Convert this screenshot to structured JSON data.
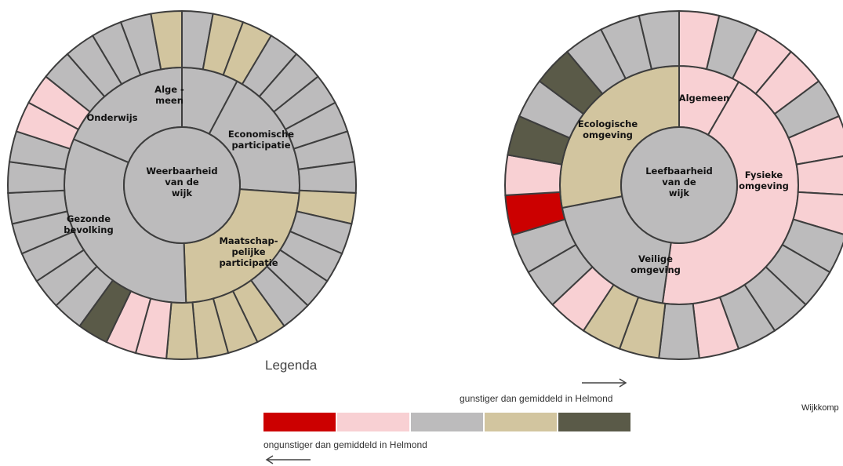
{
  "legend": {
    "title": "Legenda",
    "favorable_text": "gunstiger dan gemiddeld in Helmond",
    "unfavorable_text": "ongunstiger dan gemiddeld in Helmond",
    "colors": [
      "#cc0000",
      "#f8d0d3",
      "#bcbbbc",
      "#d2c59f",
      "#5a5a48"
    ]
  },
  "footer": {
    "text": "Wijkkomp"
  },
  "color_scale": {
    "R": "#cc0000",
    "P": "#f8d0d3",
    "G": "#bcbbbc",
    "T": "#d2c59f",
    "D": "#5a5a48"
  },
  "chart_data": [
    {
      "type": "sunburst",
      "center_label": [
        "Weerbaarheid",
        "van de",
        "wijk"
      ],
      "categories": [
        {
          "label": [
            "Alge -",
            "meen"
          ],
          "color": "G",
          "indicators": [
            "G",
            "T",
            "T",
            "G",
            "G",
            "G",
            "G",
            "G",
            "G",
            "T",
            "G",
            "G",
            "G",
            "G",
            "T",
            "T"
          ]
        },
        {
          "label": [
            "Economische",
            "participatie"
          ],
          "color": "G",
          "indicators": []
        },
        {
          "label": [
            "Maatschap-",
            "pelijke",
            "participatie"
          ],
          "color": "T",
          "indicators": [
            "T",
            "T",
            "P",
            "P",
            "D"
          ]
        },
        {
          "label": [
            "Gezonde",
            "bevolking"
          ],
          "color": "G",
          "indicators": [
            "G",
            "G",
            "G",
            "G",
            "G",
            "G",
            "G",
            "P",
            "P",
            "G",
            "G"
          ]
        },
        {
          "label": [
            "Onderwijs"
          ],
          "color": "G",
          "indicators": [
            "G",
            "G",
            "T"
          ]
        }
      ]
    },
    {
      "type": "sunburst",
      "center_label": [
        "Leefbaarheid",
        "van de",
        "wijk"
      ],
      "categories": [
        {
          "label": [
            "Algemeen"
          ],
          "color": "P",
          "indicators": [
            "P"
          ]
        },
        {
          "label": [
            "Fysieke",
            "omgeving"
          ],
          "color": "P",
          "indicators": [
            "G",
            "P",
            "P",
            "G",
            "P",
            "P",
            "P",
            "G",
            "G",
            "G",
            "G"
          ]
        },
        {
          "label": [
            "Veilige",
            "omgeving"
          ],
          "color": "G",
          "indicators": [
            "P",
            "G",
            "T",
            "T",
            "P",
            "G",
            "G",
            "R",
            "P",
            "D"
          ]
        },
        {
          "label": [
            "Ecologische",
            "omgeving"
          ],
          "color": "T",
          "indicators": [
            "G",
            "D",
            "G",
            "G",
            "G"
          ]
        }
      ]
    }
  ]
}
